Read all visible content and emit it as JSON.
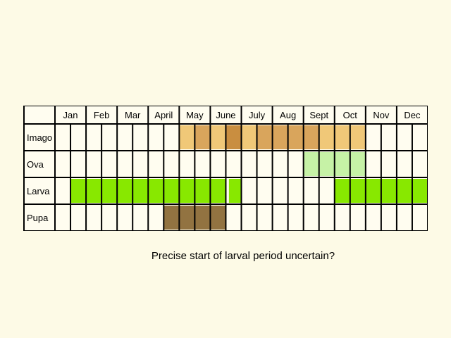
{
  "months": [
    "Jan",
    "Feb",
    "Mar",
    "April",
    "May",
    "June",
    "July",
    "Aug",
    "Sept",
    "Oct",
    "Nov",
    "Dec"
  ],
  "stages": [
    {
      "label": "Imago",
      "segments": [
        {
          "from": 8,
          "to": 9,
          "color": "#f0c878"
        },
        {
          "from": 9,
          "to": 10,
          "color": "#d9a55c"
        },
        {
          "from": 10,
          "to": 11,
          "color": "#f0c878"
        },
        {
          "from": 11,
          "to": 12,
          "color": "#c98e40"
        },
        {
          "from": 12,
          "to": 13,
          "color": "#f0c878"
        },
        {
          "from": 13,
          "to": 14,
          "color": "#d9a55c"
        },
        {
          "from": 14,
          "to": 15,
          "color": "#d9a55c"
        },
        {
          "from": 15,
          "to": 16,
          "color": "#d9a55c"
        },
        {
          "from": 16,
          "to": 17,
          "color": "#d9a55c"
        },
        {
          "from": 17,
          "to": 18,
          "color": "#f0c878"
        },
        {
          "from": 18,
          "to": 19,
          "color": "#f0c878"
        },
        {
          "from": 19,
          "to": 20,
          "color": "#f0c878"
        }
      ]
    },
    {
      "label": "Ova",
      "segments": [
        {
          "from": 16,
          "to": 20,
          "color": "#c6f2a6"
        }
      ]
    },
    {
      "label": "Larva",
      "segments": [
        {
          "from": 1,
          "to": 11,
          "color": "#88e800"
        },
        {
          "from": 11.2,
          "to": 12,
          "color": "#88e800"
        },
        {
          "from": 18,
          "to": 25,
          "color": "#88e800"
        }
      ]
    },
    {
      "label": "Pupa",
      "segments": [
        {
          "from": 7,
          "to": 11,
          "color": "#927341"
        }
      ]
    }
  ],
  "note": "Precise start of larval period uncertain?"
}
